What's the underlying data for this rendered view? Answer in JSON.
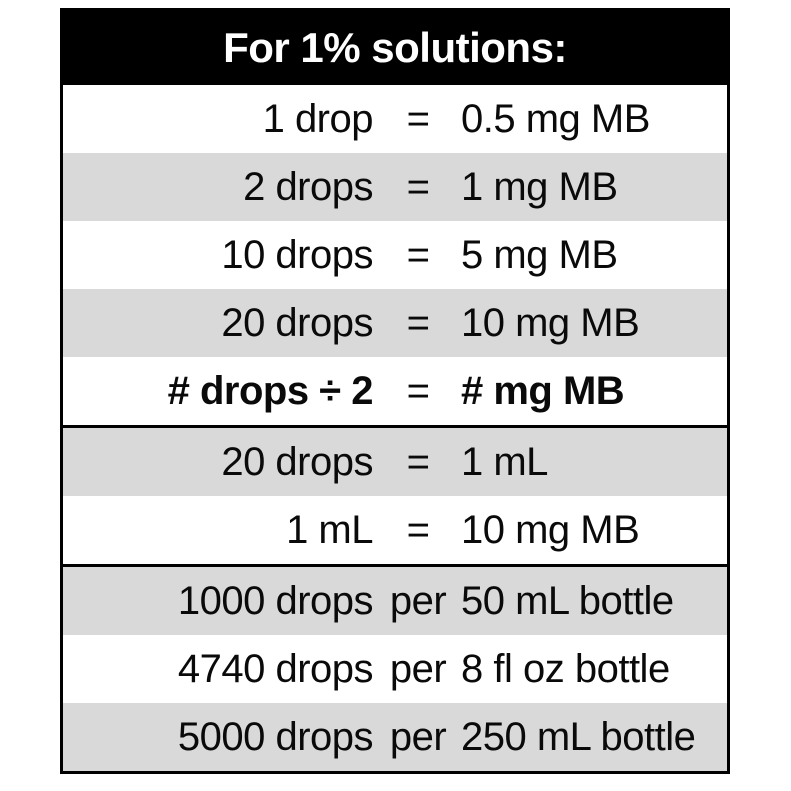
{
  "table": {
    "title": "For 1% solutions:",
    "colors": {
      "header_bg": "#000000",
      "header_text": "#ffffff",
      "shaded_row_bg": "#d9d9d9",
      "plain_row_bg": "#ffffff",
      "border": "#000000",
      "text": "#0a0a0a"
    },
    "rows": [
      {
        "left": "1 drop",
        "mid": "=",
        "right": "0.5 mg MB"
      },
      {
        "left": "2 drops",
        "mid": "=",
        "right": "1 mg MB"
      },
      {
        "left": "10 drops",
        "mid": "=",
        "right": "5 mg MB"
      },
      {
        "left": "20 drops",
        "mid": "=",
        "right": "10 mg MB"
      },
      {
        "left": "# drops ÷ 2",
        "mid": "=",
        "right": "# mg MB"
      },
      {
        "left": "20 drops",
        "mid": "=",
        "right": "1 mL"
      },
      {
        "left": "1 mL",
        "mid": "=",
        "right": "10 mg MB"
      },
      {
        "left": "1000 drops",
        "mid": "per",
        "right": "50 mL bottle"
      },
      {
        "left": "4740 drops",
        "mid": "per",
        "right": "8 fl oz bottle"
      },
      {
        "left": "5000 drops",
        "mid": "per",
        "right": "250 mL bottle"
      }
    ]
  }
}
